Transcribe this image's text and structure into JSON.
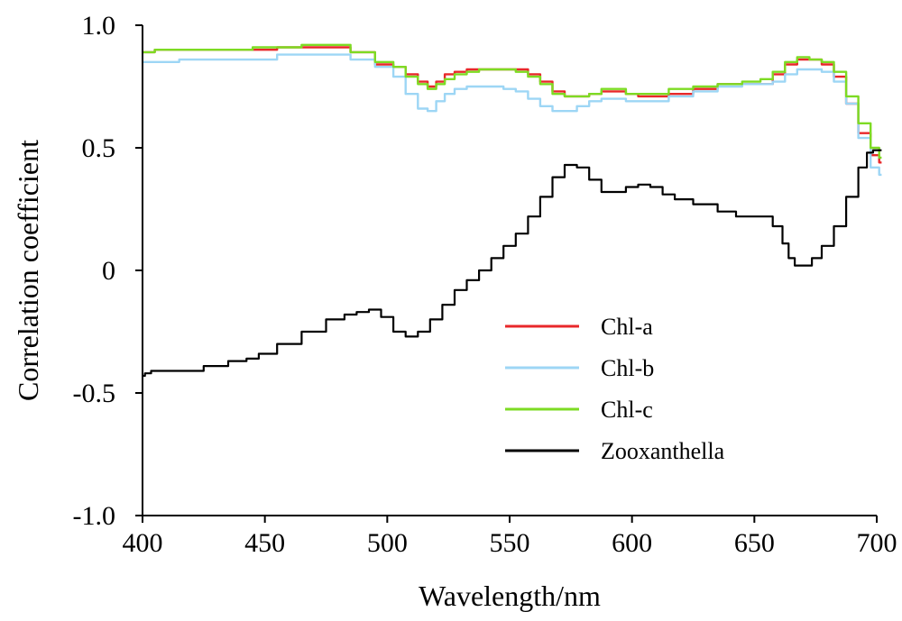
{
  "chart_data": {
    "type": "line",
    "title": "",
    "xlabel": "Wavelength/nm",
    "ylabel": "Correlation coefficient",
    "xlim": [
      400,
      700
    ],
    "ylim": [
      -1.0,
      1.0
    ],
    "xticks": [
      400,
      450,
      500,
      550,
      600,
      650,
      700
    ],
    "xtick_labels": [
      "400",
      "450",
      "500",
      "550",
      "600",
      "650",
      "700"
    ],
    "yticks": [
      1.0,
      0.5,
      0,
      -0.5,
      -1.0
    ],
    "ytick_labels": [
      "1.0",
      "0.5",
      "0",
      "-0.5",
      "-1.0"
    ],
    "grid": false,
    "legend_position": "center-right",
    "series": [
      {
        "name": "Chl-a",
        "color": "#e8282a",
        "x": [
          400,
          410,
          420,
          430,
          440,
          450,
          460,
          470,
          480,
          490,
          500,
          505,
          510,
          515,
          518,
          522,
          525,
          530,
          535,
          540,
          545,
          550,
          555,
          560,
          565,
          570,
          575,
          580,
          585,
          590,
          595,
          600,
          605,
          610,
          620,
          630,
          640,
          650,
          655,
          660,
          665,
          670,
          675,
          680,
          685,
          690,
          695,
          700,
          702
        ],
        "y": [
          0.89,
          0.9,
          0.9,
          0.9,
          0.9,
          0.9,
          0.91,
          0.91,
          0.91,
          0.89,
          0.84,
          0.83,
          0.8,
          0.77,
          0.75,
          0.77,
          0.8,
          0.81,
          0.82,
          0.82,
          0.82,
          0.82,
          0.82,
          0.8,
          0.77,
          0.73,
          0.71,
          0.71,
          0.72,
          0.73,
          0.73,
          0.72,
          0.71,
          0.71,
          0.72,
          0.74,
          0.76,
          0.76,
          0.76,
          0.8,
          0.84,
          0.86,
          0.86,
          0.84,
          0.79,
          0.68,
          0.56,
          0.47,
          0.44
        ]
      },
      {
        "name": "Chl-b",
        "color": "#9dd6f5",
        "x": [
          400,
          410,
          420,
          430,
          440,
          450,
          460,
          470,
          480,
          490,
          500,
          505,
          510,
          515,
          518,
          522,
          525,
          530,
          535,
          540,
          545,
          550,
          555,
          560,
          565,
          570,
          575,
          580,
          585,
          590,
          595,
          600,
          605,
          610,
          620,
          630,
          640,
          650,
          655,
          660,
          665,
          670,
          675,
          680,
          685,
          690,
          695,
          700,
          702
        ],
        "y": [
          0.85,
          0.85,
          0.86,
          0.86,
          0.86,
          0.86,
          0.88,
          0.88,
          0.88,
          0.86,
          0.83,
          0.79,
          0.72,
          0.66,
          0.65,
          0.69,
          0.72,
          0.74,
          0.75,
          0.75,
          0.75,
          0.74,
          0.73,
          0.7,
          0.67,
          0.65,
          0.65,
          0.67,
          0.69,
          0.7,
          0.7,
          0.69,
          0.69,
          0.69,
          0.71,
          0.73,
          0.75,
          0.76,
          0.76,
          0.77,
          0.8,
          0.82,
          0.82,
          0.81,
          0.77,
          0.68,
          0.54,
          0.42,
          0.39
        ]
      },
      {
        "name": "Chl-c",
        "color": "#7ddb23",
        "x": [
          400,
          410,
          420,
          430,
          440,
          450,
          460,
          470,
          480,
          490,
          500,
          505,
          510,
          515,
          518,
          522,
          525,
          530,
          535,
          540,
          545,
          550,
          555,
          560,
          565,
          570,
          575,
          580,
          585,
          590,
          595,
          600,
          605,
          610,
          620,
          630,
          640,
          650,
          655,
          660,
          665,
          670,
          675,
          680,
          685,
          690,
          695,
          700,
          702
        ],
        "y": [
          0.89,
          0.9,
          0.9,
          0.9,
          0.9,
          0.91,
          0.91,
          0.92,
          0.92,
          0.89,
          0.85,
          0.83,
          0.79,
          0.76,
          0.74,
          0.76,
          0.78,
          0.8,
          0.81,
          0.82,
          0.82,
          0.82,
          0.81,
          0.79,
          0.76,
          0.72,
          0.71,
          0.71,
          0.72,
          0.74,
          0.74,
          0.72,
          0.72,
          0.72,
          0.74,
          0.75,
          0.76,
          0.77,
          0.78,
          0.81,
          0.85,
          0.87,
          0.86,
          0.85,
          0.81,
          0.71,
          0.6,
          0.5,
          0.46
        ]
      },
      {
        "name": "Zooxanthella",
        "color": "#000000",
        "x": [
          400,
          402,
          405,
          410,
          420,
          430,
          440,
          445,
          450,
          460,
          470,
          480,
          485,
          490,
          495,
          500,
          505,
          510,
          515,
          520,
          525,
          530,
          535,
          540,
          545,
          550,
          555,
          560,
          565,
          570,
          575,
          580,
          585,
          590,
          595,
          600,
          605,
          610,
          615,
          620,
          630,
          640,
          645,
          650,
          655,
          660,
          663,
          665,
          668,
          672,
          675,
          680,
          685,
          690,
          695,
          697,
          700,
          702
        ],
        "y": [
          -0.43,
          -0.42,
          -0.41,
          -0.41,
          -0.41,
          -0.39,
          -0.37,
          -0.36,
          -0.34,
          -0.3,
          -0.25,
          -0.2,
          -0.18,
          -0.17,
          -0.16,
          -0.19,
          -0.25,
          -0.27,
          -0.25,
          -0.2,
          -0.14,
          -0.08,
          -0.04,
          0.0,
          0.05,
          0.1,
          0.15,
          0.22,
          0.3,
          0.38,
          0.43,
          0.42,
          0.37,
          0.32,
          0.32,
          0.34,
          0.35,
          0.34,
          0.31,
          0.29,
          0.27,
          0.24,
          0.22,
          0.22,
          0.22,
          0.18,
          0.11,
          0.05,
          0.02,
          0.02,
          0.05,
          0.1,
          0.18,
          0.3,
          0.42,
          0.48,
          0.49,
          0.49
        ]
      }
    ]
  }
}
